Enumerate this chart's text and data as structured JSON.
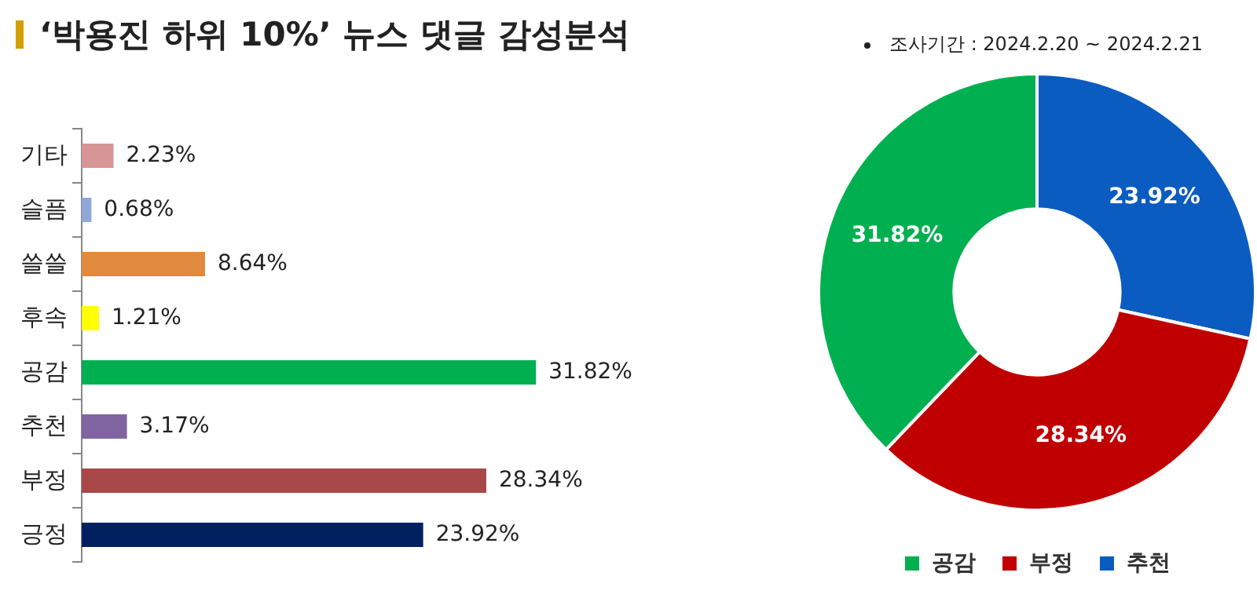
{
  "chart_data": [
    {
      "type": "bar",
      "title": "‘박용진 하위 10%’ 뉴스 댓글 감성분석",
      "orientation": "horizontal",
      "categories": [
        "기타",
        "슬픔",
        "쓸쓸",
        "후속",
        "공감",
        "추천",
        "부정",
        "긍정"
      ],
      "values": [
        2.23,
        0.68,
        8.64,
        1.21,
        31.82,
        3.17,
        28.34,
        23.92
      ],
      "colors": [
        "#d79595",
        "#8fa8d8",
        "#e08a40",
        "#ffff00",
        "#00b050",
        "#8064a2",
        "#a84848",
        "#002060"
      ],
      "value_labels": [
        "2.23%",
        "0.68%",
        "8.64%",
        "1.21%",
        "31.82%",
        "3.17%",
        "28.34%",
        "23.92%"
      ],
      "tick_labels": "y",
      "legend": false
    },
    {
      "type": "donut",
      "annotations": [
        "조사기간 : 2024.2.20 ~ 2024.2.21"
      ],
      "categories": [
        "추천",
        "부정",
        "공감"
      ],
      "values": [
        23.92,
        28.34,
        31.82
      ],
      "colors": [
        "#0b5cc0",
        "#c00000",
        "#00b050"
      ],
      "value_labels": [
        "23.92%",
        "28.34%",
        "31.82%"
      ],
      "legend": "bottom"
    }
  ]
}
